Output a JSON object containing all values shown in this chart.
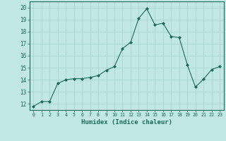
{
  "x": [
    0,
    1,
    2,
    3,
    4,
    5,
    6,
    7,
    8,
    9,
    10,
    11,
    12,
    13,
    14,
    15,
    16,
    17,
    18,
    19,
    20,
    21,
    22,
    23
  ],
  "y": [
    11.8,
    12.2,
    12.2,
    13.7,
    14.0,
    14.1,
    14.1,
    14.2,
    14.35,
    14.8,
    15.1,
    16.6,
    17.1,
    19.1,
    19.9,
    18.55,
    18.7,
    17.6,
    17.5,
    15.25,
    13.4,
    14.05,
    14.85,
    15.1
  ],
  "line_color": "#1a6b5a",
  "marker": "D",
  "markersize": 2.0,
  "bg_color": "#c2e8e5",
  "grid_color": "#aad4d0",
  "axis_color": "#1a6b5a",
  "tick_color": "#1a6b5a",
  "xlabel": "Humidex (Indice chaleur)",
  "xlim": [
    -0.5,
    23.5
  ],
  "ylim": [
    11.5,
    20.5
  ],
  "yticks": [
    12,
    13,
    14,
    15,
    16,
    17,
    18,
    19,
    20
  ],
  "xticks": [
    0,
    1,
    2,
    3,
    4,
    5,
    6,
    7,
    8,
    9,
    10,
    11,
    12,
    13,
    14,
    15,
    16,
    17,
    18,
    19,
    20,
    21,
    22,
    23
  ],
  "xticklabels": [
    "0",
    "1",
    "2",
    "3",
    "4",
    "5",
    "6",
    "7",
    "8",
    "9",
    "10",
    "11",
    "12",
    "13",
    "14",
    "15",
    "16",
    "17",
    "18",
    "19",
    "20",
    "21",
    "22",
    "23"
  ]
}
